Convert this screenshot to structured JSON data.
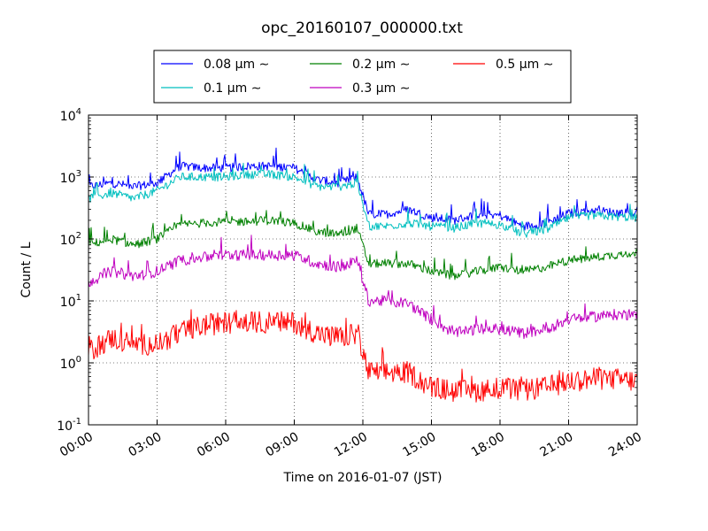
{
  "chart_data": {
    "type": "line",
    "title": "opc_20160107_000000.txt",
    "xlabel": "Time on 2016-01-07 (JST)",
    "ylabel": "Count / L",
    "yscale": "log",
    "ylim": [
      0.1,
      10000
    ],
    "xlim_hours": [
      0,
      24
    ],
    "grid": true,
    "legend_position": "top-center, above plot",
    "x_tick_labels": [
      "00:00",
      "03:00",
      "06:00",
      "09:00",
      "12:00",
      "15:00",
      "18:00",
      "21:00",
      "24:00"
    ],
    "y_tick_labels": [
      {
        "base": "10",
        "exp": "-1"
      },
      {
        "base": "10",
        "exp": "0"
      },
      {
        "base": "10",
        "exp": "1"
      },
      {
        "base": "10",
        "exp": "2"
      },
      {
        "base": "10",
        "exp": "3"
      },
      {
        "base": "10",
        "exp": "4"
      }
    ],
    "x": [
      "00:00",
      "01:00",
      "02:00",
      "03:00",
      "04:00",
      "05:00",
      "06:00",
      "07:00",
      "08:00",
      "09:00",
      "10:00",
      "11:00",
      "11:45",
      "12:15",
      "13:00",
      "14:00",
      "15:00",
      "16:00",
      "17:00",
      "18:00",
      "19:00",
      "20:00",
      "21:00",
      "22:00",
      "23:00",
      "24:00"
    ],
    "series": [
      {
        "name": "0.08 μm ∼",
        "color": "#0000ff",
        "values": [
          700,
          800,
          700,
          800,
          1500,
          1400,
          1400,
          1500,
          1500,
          1400,
          900,
          800,
          1000,
          250,
          250,
          300,
          220,
          200,
          250,
          240,
          160,
          180,
          260,
          290,
          270,
          260
        ]
      },
      {
        "name": "0.1 μm ∼",
        "color": "#00bfbf",
        "values": [
          450,
          550,
          450,
          600,
          1000,
          1000,
          1000,
          1100,
          1100,
          1000,
          700,
          700,
          800,
          160,
          160,
          180,
          160,
          150,
          180,
          170,
          120,
          140,
          220,
          240,
          230,
          220
        ]
      },
      {
        "name": "0.2 μm ∼",
        "color": "#008000",
        "values": [
          80,
          100,
          80,
          100,
          170,
          180,
          190,
          190,
          200,
          180,
          130,
          120,
          150,
          40,
          40,
          40,
          30,
          25,
          30,
          35,
          30,
          35,
          45,
          50,
          55,
          60
        ]
      },
      {
        "name": "0.3 μm ∼",
        "color": "#bf00bf",
        "values": [
          20,
          30,
          25,
          30,
          45,
          50,
          55,
          55,
          55,
          55,
          40,
          35,
          45,
          10,
          10,
          9,
          5,
          3,
          3.5,
          3.5,
          3,
          3.5,
          5,
          5.5,
          6,
          6
        ]
      },
      {
        "name": "0.5 μm ∼",
        "color": "#ff0000",
        "values": [
          1.5,
          2.5,
          2,
          2,
          3,
          4,
          4.5,
          4.5,
          4.5,
          4.5,
          3,
          2.5,
          3,
          0.7,
          0.7,
          0.7,
          0.4,
          0.35,
          0.35,
          0.4,
          0.35,
          0.4,
          0.5,
          0.55,
          0.55,
          0.5
        ]
      }
    ]
  }
}
